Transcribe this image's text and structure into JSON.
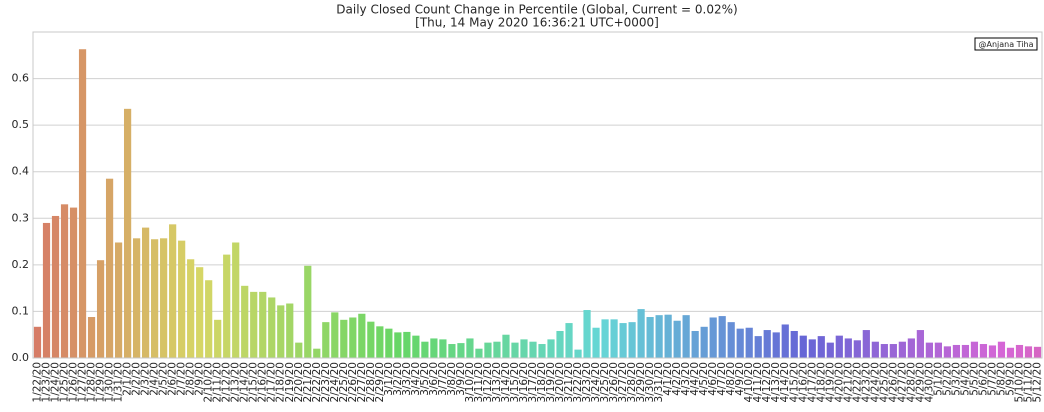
{
  "chart_data": {
    "type": "bar",
    "title": "Daily Closed Count Change in Percentile (Global, Current = 0.02%)",
    "subtitle": "[Thu, 14 May 2020 16:36:21 UTC+0000]",
    "annotation": "@Anjana Tiha",
    "categories": [
      "1/22/20",
      "1/23/20",
      "1/24/20",
      "1/25/20",
      "1/26/20",
      "1/27/20",
      "1/28/20",
      "1/29/20",
      "1/30/20",
      "1/31/20",
      "2/1/20",
      "2/2/20",
      "2/3/20",
      "2/4/20",
      "2/5/20",
      "2/6/20",
      "2/7/20",
      "2/8/20",
      "2/9/20",
      "2/10/20",
      "2/11/20",
      "2/12/20",
      "2/13/20",
      "2/14/20",
      "2/15/20",
      "2/16/20",
      "2/17/20",
      "2/18/20",
      "2/19/20",
      "2/20/20",
      "2/21/20",
      "2/22/20",
      "2/23/20",
      "2/24/20",
      "2/25/20",
      "2/26/20",
      "2/27/20",
      "2/28/20",
      "2/29/20",
      "3/1/20",
      "3/2/20",
      "3/3/20",
      "3/4/20",
      "3/5/20",
      "3/6/20",
      "3/7/20",
      "3/8/20",
      "3/9/20",
      "3/10/20",
      "3/11/20",
      "3/12/20",
      "3/13/20",
      "3/14/20",
      "3/15/20",
      "3/16/20",
      "3/17/20",
      "3/18/20",
      "3/19/20",
      "3/20/20",
      "3/21/20",
      "3/22/20",
      "3/23/20",
      "3/24/20",
      "3/25/20",
      "3/26/20",
      "3/27/20",
      "3/28/20",
      "3/29/20",
      "3/30/20",
      "3/31/20",
      "4/1/20",
      "4/2/20",
      "4/3/20",
      "4/4/20",
      "4/5/20",
      "4/6/20",
      "4/7/20",
      "4/8/20",
      "4/9/20",
      "4/10/20",
      "4/11/20",
      "4/12/20",
      "4/13/20",
      "4/14/20",
      "4/15/20",
      "4/16/20",
      "4/17/20",
      "4/18/20",
      "4/19/20",
      "4/20/20",
      "4/21/20",
      "4/22/20",
      "4/23/20",
      "4/24/20",
      "4/25/20",
      "4/26/20",
      "4/27/20",
      "4/28/20",
      "4/29/20",
      "4/30/20",
      "5/1/20",
      "5/2/20",
      "5/3/20",
      "5/4/20",
      "5/5/20",
      "5/6/20",
      "5/7/20",
      "5/8/20",
      "5/9/20",
      "5/10/20",
      "5/11/20",
      "5/12/20"
    ],
    "values": [
      0.067,
      0.29,
      0.305,
      0.33,
      0.323,
      0.663,
      0.088,
      0.21,
      0.385,
      0.248,
      0.535,
      0.257,
      0.28,
      0.255,
      0.257,
      0.287,
      0.252,
      0.212,
      0.195,
      0.167,
      0.082,
      0.222,
      0.248,
      0.155,
      0.142,
      0.142,
      0.13,
      0.113,
      0.117,
      0.033,
      0.198,
      0.02,
      0.077,
      0.098,
      0.082,
      0.087,
      0.095,
      0.078,
      0.068,
      0.063,
      0.055,
      0.056,
      0.048,
      0.035,
      0.042,
      0.04,
      0.03,
      0.032,
      0.042,
      0.02,
      0.033,
      0.035,
      0.05,
      0.033,
      0.04,
      0.035,
      0.03,
      0.04,
      0.058,
      0.075,
      0.018,
      0.103,
      0.065,
      0.083,
      0.083,
      0.075,
      0.077,
      0.105,
      0.088,
      0.092,
      0.093,
      0.08,
      0.092,
      0.058,
      0.067,
      0.087,
      0.09,
      0.077,
      0.063,
      0.065,
      0.047,
      0.06,
      0.055,
      0.072,
      0.058,
      0.048,
      0.04,
      0.047,
      0.033,
      0.048,
      0.042,
      0.038,
      0.06,
      0.035,
      0.03,
      0.03,
      0.035,
      0.042,
      0.06,
      0.033,
      0.033,
      0.025,
      0.028,
      0.028,
      0.035,
      0.03,
      0.027,
      0.035,
      0.022,
      0.028,
      0.025,
      0.024
    ],
    "palette": "husl",
    "ylim": [
      0,
      0.7
    ],
    "yticks": [
      {
        "value": 0,
        "label": "0.0"
      },
      0.1,
      0.2,
      0.3,
      0.4,
      0.5,
      0.6
    ],
    "grid": true
  }
}
